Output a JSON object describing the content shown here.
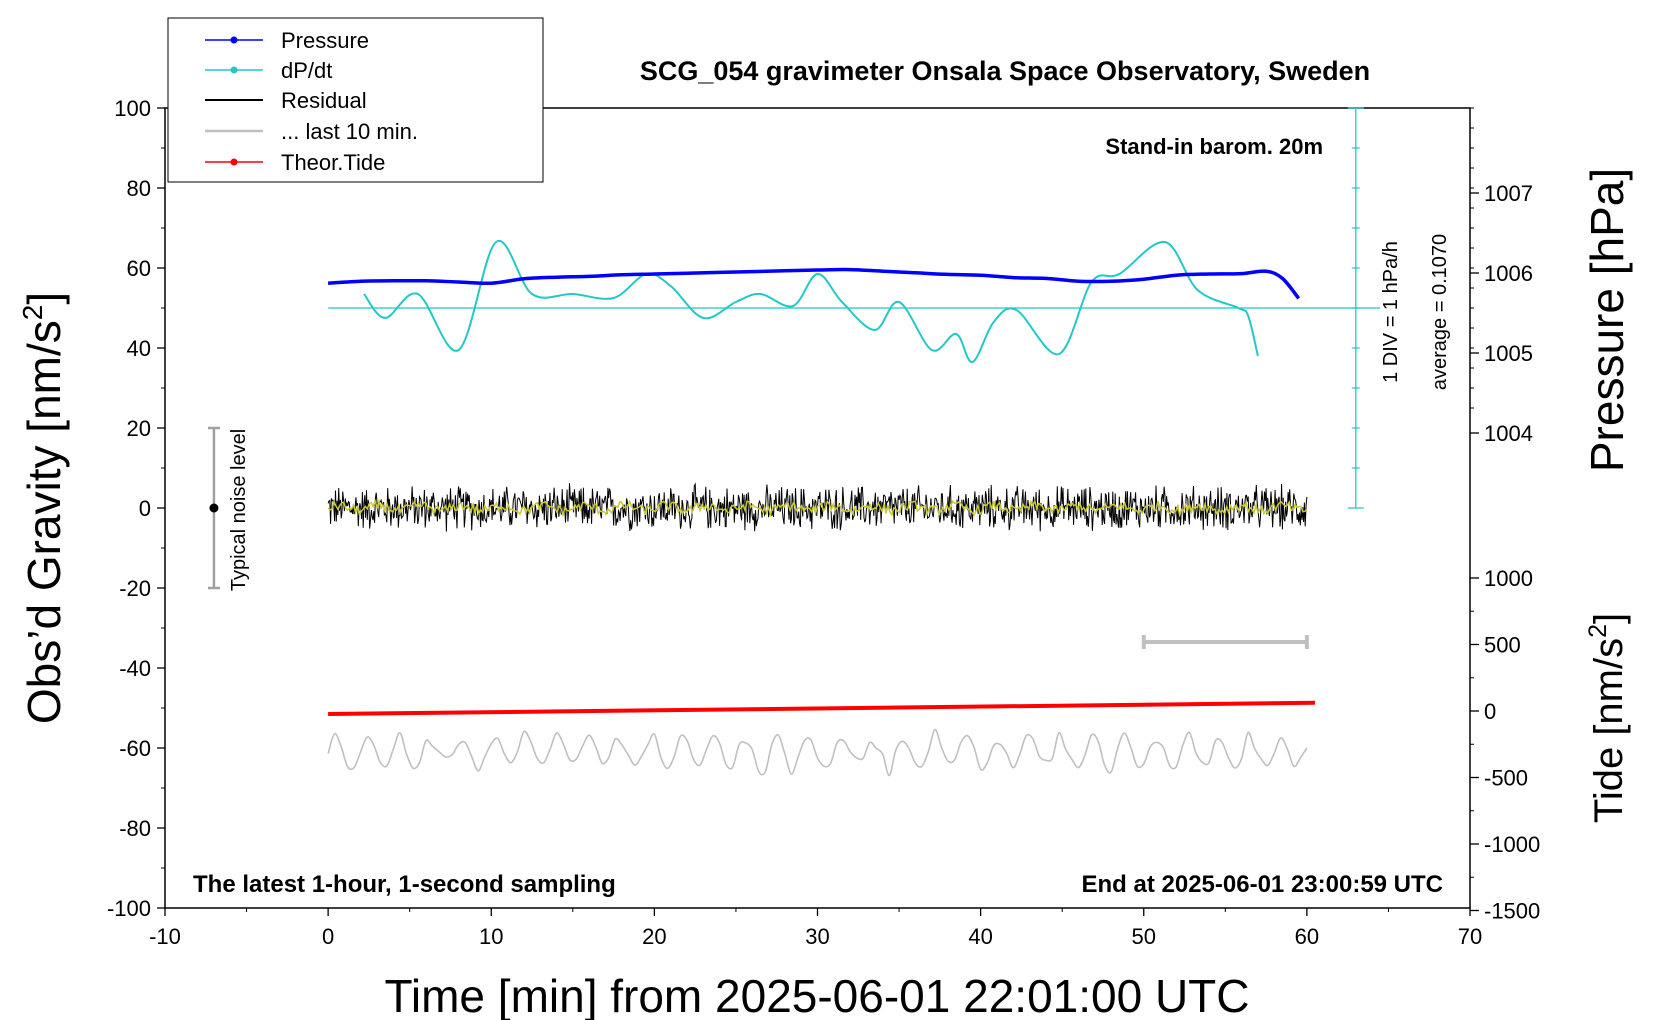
{
  "chart_data": {
    "type": "line",
    "title": "SCG_054 gravimeter Onsala Space Observatory, Sweden",
    "xlabel": "Time [min] from 2025-06-01 22:01:00 UTC",
    "ylabel_main": "Obs’d Gravity [nm/s",
    "ylabel_main_sup": "2",
    "ylabel_main_end": "]",
    "ylabel_pressure": "Pressure [hPa]",
    "ylabel_tide": "Tide [nm/s",
    "ylabel_tide_sup": "2",
    "ylabel_tide_end": "]",
    "xlim": [
      -10,
      70
    ],
    "ylim": [
      -100,
      100
    ],
    "x_ticks": [
      "-10",
      "0",
      "10",
      "20",
      "30",
      "40",
      "50",
      "60",
      "70"
    ],
    "y_ticks": [
      "-100",
      "-80",
      "-60",
      "-40",
      "-20",
      "0",
      "20",
      "40",
      "60",
      "80",
      "100"
    ],
    "pressure_ticks": [
      "1004",
      "1005",
      "1006",
      "1007"
    ],
    "tide_ticks": [
      "-1500",
      "-1000",
      "-500",
      "0",
      "500",
      "1000"
    ],
    "grid": false,
    "legend_placement": "top-left",
    "legend": [
      "Pressure",
      "dP/dt",
      "Residual",
      "... last 10 min.",
      "Theor.Tide"
    ],
    "annotations": {
      "barometer": "Stand-in barom. 20m",
      "div": "1 DIV = 1 hPa/h",
      "average": "average = 0.1070",
      "noise": "Typical noise level",
      "bottom_left": "The latest 1-hour, 1-second sampling",
      "bottom_right": "End at 2025-06-01 23:00:59 UTC"
    },
    "colors": {
      "pressure": "#0000ff",
      "dpdt": "#22c8c8",
      "residual": "#000000",
      "last10": "#c0c0c0",
      "tide": "#ff0000",
      "residual_smooth": "#c8c832"
    },
    "series": [
      {
        "name": "Pressure",
        "x": [
          0,
          2,
          4,
          6,
          8,
          10,
          12,
          14,
          16,
          18,
          20,
          22,
          24,
          26,
          28,
          30,
          32,
          34,
          36,
          38,
          40,
          42,
          44,
          46,
          48,
          50,
          52,
          54,
          56,
          57.5,
          58.5,
          59.5
        ],
        "values": [
          56.2,
          56.7,
          56.8,
          56.8,
          56.5,
          56.2,
          57.3,
          57.7,
          57.9,
          58.3,
          58.5,
          58.7,
          58.9,
          59.1,
          59.3,
          59.5,
          59.6,
          59.2,
          58.8,
          58.4,
          58.2,
          57.6,
          57.4,
          56.7,
          56.7,
          57.2,
          58.2,
          58.5,
          58.6,
          59.2,
          57.4,
          52.4
        ]
      },
      {
        "name": "dP/dt",
        "x": [
          2.2,
          3.5,
          5.5,
          8,
          10.3,
          12.5,
          15,
          17.5,
          19.5,
          21,
          23,
          25,
          26.5,
          28.5,
          30,
          31.5,
          33.5,
          35,
          37,
          38.5,
          39.5,
          40.8,
          42.2,
          44.8,
          46.8,
          48.5,
          51.3,
          53.3,
          55.8,
          56.4,
          57
        ],
        "values": [
          53.5,
          47.5,
          53.5,
          39.5,
          66.5,
          53.5,
          53.5,
          52.5,
          58.5,
          55.5,
          47.5,
          51.5,
          53.5,
          50.5,
          58.5,
          51.5,
          44.5,
          51.5,
          39.5,
          43.5,
          36.5,
          46.5,
          49.5,
          38.5,
          56.5,
          58.5,
          66.5,
          54.5,
          50,
          48,
          38
        ]
      },
      {
        "name": "Residual",
        "x": [
          0,
          60
        ],
        "values": [
          0,
          0
        ],
        "amplitude": 5
      },
      {
        "name": "... last 10 min.",
        "x": [
          0,
          60
        ],
        "values": [
          -61,
          -61
        ],
        "amplitude": 5
      },
      {
        "name": "Theor.Tide",
        "x": [
          0,
          60.5
        ],
        "values": [
          -51.5,
          -48.7
        ]
      }
    ],
    "dpdt_average_line": 50,
    "noise_bar": {
      "x": -7,
      "low": -20,
      "high": 20
    },
    "div_scale_x": 63
  }
}
